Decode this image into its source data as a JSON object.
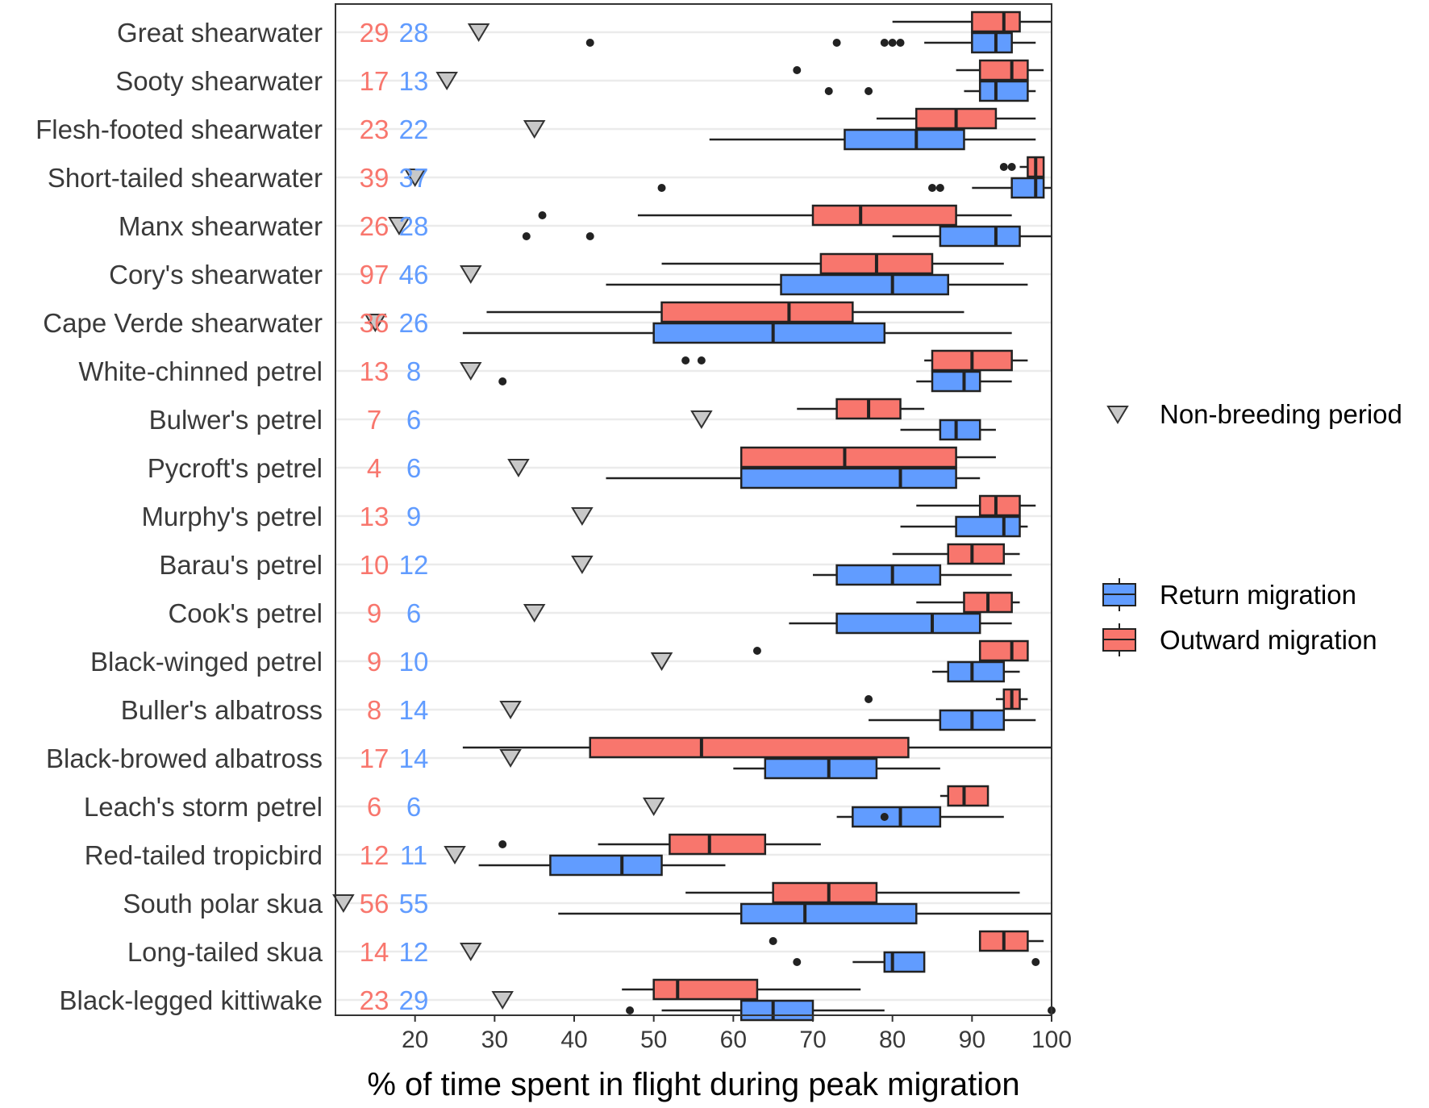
{
  "chart_data": {
    "type": "boxplot",
    "xlabel": "% of time spent in flight during peak migration",
    "xlim": [
      10,
      100
    ],
    "xticks": [
      20,
      30,
      40,
      50,
      60,
      70,
      80,
      90,
      100
    ],
    "legend": {
      "position": "right",
      "nonbreeding_label": "Non-breeding period",
      "return_label": "Return migration",
      "outward_label": "Outward migration"
    },
    "colors": {
      "outward": "#F8766D",
      "return": "#619CFF",
      "outward_text": "#F8766D",
      "return_text": "#619CFF",
      "nonbreeding": "#C8C8C8",
      "gridline": "#EBEBEB",
      "stroke": "#222222"
    },
    "species": [
      {
        "name": "Great shearwater",
        "n_outward": "29",
        "n_return": "28",
        "nonbreeding": 28,
        "outward": {
          "whislo": 80,
          "q1": 90,
          "med": 94,
          "q3": 96,
          "whishi": 100,
          "outliers": []
        },
        "return": {
          "whislo": 84,
          "q1": 90,
          "med": 93,
          "q3": 95,
          "whishi": 98,
          "outliers": [
            42,
            73,
            79,
            80,
            81
          ]
        }
      },
      {
        "name": "Sooty shearwater",
        "n_outward": "17",
        "n_return": "13",
        "nonbreeding": 24,
        "outward": {
          "whislo": 88,
          "q1": 91,
          "med": 95,
          "q3": 97,
          "whishi": 99,
          "outliers": [
            68
          ]
        },
        "return": {
          "whislo": 89,
          "q1": 91,
          "med": 93,
          "q3": 97,
          "whishi": 98,
          "outliers": [
            72,
            77
          ]
        }
      },
      {
        "name": "Flesh-footed shearwater",
        "n_outward": "23",
        "n_return": "22",
        "nonbreeding": 35,
        "outward": {
          "whislo": 78,
          "q1": 83,
          "med": 88,
          "q3": 93,
          "whishi": 98,
          "outliers": []
        },
        "return": {
          "whislo": 57,
          "q1": 74,
          "med": 83,
          "q3": 89,
          "whishi": 98,
          "outliers": []
        }
      },
      {
        "name": "Short-tailed shearwater",
        "n_outward": "39",
        "n_return": "37",
        "nonbreeding": 20,
        "outward": {
          "whislo": 96,
          "q1": 97,
          "med": 98,
          "q3": 99,
          "whishi": 99,
          "outliers": [
            94,
            95
          ]
        },
        "return": {
          "whislo": 90,
          "q1": 95,
          "med": 98,
          "q3": 99,
          "whishi": 100,
          "outliers": [
            51,
            85,
            86
          ]
        }
      },
      {
        "name": "Manx shearwater",
        "n_outward": "26",
        "n_return": "28",
        "nonbreeding": 18,
        "outward": {
          "whislo": 48,
          "q1": 70,
          "med": 76,
          "q3": 88,
          "whishi": 95,
          "outliers": [
            36
          ]
        },
        "return": {
          "whislo": 80,
          "q1": 86,
          "med": 93,
          "q3": 96,
          "whishi": 100,
          "outliers": [
            34,
            42
          ]
        }
      },
      {
        "name": "Cory's shearwater",
        "n_outward": "97",
        "n_return": "46",
        "nonbreeding": 27,
        "outward": {
          "whislo": 51,
          "q1": 71,
          "med": 78,
          "q3": 85,
          "whishi": 94,
          "outliers": []
        },
        "return": {
          "whislo": 44,
          "q1": 66,
          "med": 80,
          "q3": 87,
          "whishi": 97,
          "outliers": []
        }
      },
      {
        "name": "Cape Verde shearwater",
        "n_outward": "36",
        "n_return": "26",
        "nonbreeding": 15,
        "outward": {
          "whislo": 29,
          "q1": 51,
          "med": 67,
          "q3": 75,
          "whishi": 89,
          "outliers": []
        },
        "return": {
          "whislo": 26,
          "q1": 50,
          "med": 65,
          "q3": 79,
          "whishi": 95,
          "outliers": []
        }
      },
      {
        "name": "White-chinned petrel",
        "n_outward": "13",
        "n_return": "8",
        "nonbreeding": 27,
        "outward": {
          "whislo": 84,
          "q1": 85,
          "med": 90,
          "q3": 95,
          "whishi": 97,
          "outliers": [
            54,
            56
          ]
        },
        "return": {
          "whislo": 83,
          "q1": 85,
          "med": 89,
          "q3": 91,
          "whishi": 95,
          "outliers": [
            31
          ]
        }
      },
      {
        "name": "Bulwer's petrel",
        "n_outward": "7",
        "n_return": "6",
        "nonbreeding": 56,
        "outward": {
          "whislo": 68,
          "q1": 73,
          "med": 77,
          "q3": 81,
          "whishi": 84,
          "outliers": []
        },
        "return": {
          "whislo": 81,
          "q1": 86,
          "med": 88,
          "q3": 91,
          "whishi": 93,
          "outliers": []
        }
      },
      {
        "name": "Pycroft's petrel",
        "n_outward": "4",
        "n_return": "6",
        "nonbreeding": 33,
        "outward": {
          "whislo": 61,
          "q1": 61,
          "med": 74,
          "q3": 88,
          "whishi": 93,
          "outliers": []
        },
        "return": {
          "whislo": 44,
          "q1": 61,
          "med": 81,
          "q3": 88,
          "whishi": 91,
          "outliers": []
        }
      },
      {
        "name": "Murphy's petrel",
        "n_outward": "13",
        "n_return": "9",
        "nonbreeding": 41,
        "outward": {
          "whislo": 83,
          "q1": 91,
          "med": 93,
          "q3": 96,
          "whishi": 98,
          "outliers": []
        },
        "return": {
          "whislo": 81,
          "q1": 88,
          "med": 94,
          "q3": 96,
          "whishi": 97,
          "outliers": []
        }
      },
      {
        "name": "Barau's petrel",
        "n_outward": "10",
        "n_return": "12",
        "nonbreeding": 41,
        "outward": {
          "whislo": 80,
          "q1": 87,
          "med": 90,
          "q3": 94,
          "whishi": 96,
          "outliers": []
        },
        "return": {
          "whislo": 70,
          "q1": 73,
          "med": 80,
          "q3": 86,
          "whishi": 95,
          "outliers": []
        }
      },
      {
        "name": "Cook's petrel",
        "n_outward": "9",
        "n_return": "6",
        "nonbreeding": 35,
        "outward": {
          "whislo": 83,
          "q1": 89,
          "med": 92,
          "q3": 95,
          "whishi": 96,
          "outliers": []
        },
        "return": {
          "whislo": 67,
          "q1": 73,
          "med": 85,
          "q3": 91,
          "whishi": 95,
          "outliers": []
        }
      },
      {
        "name": "Black-winged petrel",
        "n_outward": "9",
        "n_return": "10",
        "nonbreeding": 51,
        "outward": {
          "whislo": 91,
          "q1": 91,
          "med": 95,
          "q3": 97,
          "whishi": 97,
          "outliers": [
            63
          ]
        },
        "return": {
          "whislo": 85,
          "q1": 87,
          "med": 90,
          "q3": 94,
          "whishi": 96,
          "outliers": []
        }
      },
      {
        "name": "Buller's albatross",
        "n_outward": "8",
        "n_return": "14",
        "nonbreeding": 32,
        "outward": {
          "whislo": 93,
          "q1": 94,
          "med": 95,
          "q3": 96,
          "whishi": 97,
          "outliers": [
            77
          ]
        },
        "return": {
          "whislo": 77,
          "q1": 86,
          "med": 90,
          "q3": 94,
          "whishi": 98,
          "outliers": []
        }
      },
      {
        "name": "Black-browed albatross",
        "n_outward": "17",
        "n_return": "14",
        "nonbreeding": 32,
        "outward": {
          "whislo": 26,
          "q1": 42,
          "med": 56,
          "q3": 82,
          "whishi": 100,
          "outliers": []
        },
        "return": {
          "whislo": 60,
          "q1": 64,
          "med": 72,
          "q3": 78,
          "whishi": 86,
          "outliers": []
        }
      },
      {
        "name": "Leach's storm petrel",
        "n_outward": "6",
        "n_return": "6",
        "nonbreeding": 50,
        "outward": {
          "whislo": 86,
          "q1": 87,
          "med": 89,
          "q3": 92,
          "whishi": 92,
          "outliers": []
        },
        "return": {
          "whislo": 73,
          "q1": 75,
          "med": 81,
          "q3": 86,
          "whishi": 94,
          "outliers": [
            79
          ]
        }
      },
      {
        "name": "Red-tailed tropicbird",
        "n_outward": "12",
        "n_return": "11",
        "nonbreeding": 25,
        "outward": {
          "whislo": 43,
          "q1": 52,
          "med": 57,
          "q3": 64,
          "whishi": 71,
          "outliers": [
            31
          ]
        },
        "return": {
          "whislo": 28,
          "q1": 37,
          "med": 46,
          "q3": 51,
          "whishi": 59,
          "outliers": []
        }
      },
      {
        "name": "South polar skua",
        "n_outward": "56",
        "n_return": "55",
        "nonbreeding": 11,
        "outward": {
          "whislo": 54,
          "q1": 65,
          "med": 72,
          "q3": 78,
          "whishi": 96,
          "outliers": []
        },
        "return": {
          "whislo": 38,
          "q1": 61,
          "med": 69,
          "q3": 83,
          "whishi": 100,
          "outliers": []
        }
      },
      {
        "name": "Long-tailed skua",
        "n_outward": "14",
        "n_return": "12",
        "nonbreeding": 27,
        "outward": {
          "whislo": 91,
          "q1": 91,
          "med": 94,
          "q3": 97,
          "whishi": 99,
          "outliers": [
            65
          ]
        },
        "return": {
          "whislo": 75,
          "q1": 79,
          "med": 80,
          "q3": 84,
          "whishi": 84,
          "outliers": [
            68,
            98
          ]
        }
      },
      {
        "name": "Black-legged kittiwake",
        "n_outward": "23",
        "n_return": "29",
        "nonbreeding": 31,
        "outward": {
          "whislo": 46,
          "q1": 50,
          "med": 53,
          "q3": 63,
          "whishi": 76,
          "outliers": []
        },
        "return": {
          "whislo": 51,
          "q1": 61,
          "med": 65,
          "q3": 70,
          "whishi": 79,
          "outliers": [
            47,
            100
          ]
        }
      }
    ]
  }
}
